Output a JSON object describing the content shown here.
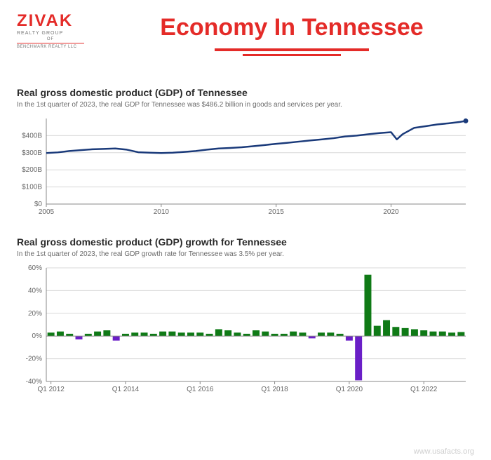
{
  "logo": {
    "brand": "ZIVAK",
    "sub": "REALTY GROUP",
    "of": "OF",
    "bottom": "BENCHMARK REALTY LLC"
  },
  "title": "Economy In Tennessee",
  "chart1": {
    "title": "Real gross domestic product (GDP) of Tennessee",
    "subtitle": "In the 1st quarter of 2023, the real GDP for Tennessee was $486.2 billion in goods and services per year.",
    "type": "line",
    "line_color": "#1a3a7a",
    "line_width": 2.5,
    "background_color": "#ffffff",
    "grid_color": "#d8d8d8",
    "axis_color": "#888888",
    "label_color": "#666666",
    "label_fontsize": 10,
    "x_start": 2005,
    "x_end": 2023.25,
    "x_ticks": [
      2005,
      2010,
      2015,
      2020
    ],
    "x_tick_labels": [
      "2005",
      "2010",
      "2015",
      "2020"
    ],
    "ylim": [
      0,
      500
    ],
    "y_ticks": [
      0,
      100,
      200,
      300,
      400
    ],
    "y_tick_labels": [
      "$0",
      "$100B",
      "$200B",
      "$300B",
      "$400B"
    ],
    "years": [
      2005,
      2005.5,
      2006,
      2006.5,
      2007,
      2007.5,
      2008,
      2008.5,
      2009,
      2009.5,
      2010,
      2010.5,
      2011,
      2011.5,
      2012,
      2012.5,
      2013,
      2013.5,
      2014,
      2014.5,
      2015,
      2015.5,
      2016,
      2016.5,
      2017,
      2017.5,
      2018,
      2018.5,
      2019,
      2019.5,
      2020,
      2020.25,
      2020.5,
      2021,
      2021.5,
      2022,
      2022.5,
      2023,
      2023.25
    ],
    "values": [
      298,
      302,
      310,
      315,
      320,
      322,
      325,
      318,
      303,
      300,
      298,
      300,
      305,
      310,
      318,
      325,
      328,
      332,
      338,
      345,
      352,
      358,
      365,
      372,
      378,
      385,
      395,
      400,
      408,
      415,
      420,
      378,
      408,
      445,
      455,
      465,
      472,
      480,
      486
    ]
  },
  "chart2": {
    "title": "Real gross domestic product (GDP) growth for Tennessee",
    "subtitle": "In the 1st quarter of 2023, the real GDP growth rate for Tennessee was 3.5% per year.",
    "type": "bar",
    "background_color": "#ffffff",
    "grid_color": "#d8d8d8",
    "axis_color": "#888888",
    "label_color": "#666666",
    "label_fontsize": 10,
    "positive_color": "#0f7a16",
    "negative_color": "#6a1fc7",
    "bar_width": 0.75,
    "ylim": [
      -40,
      60
    ],
    "y_ticks": [
      -40,
      -20,
      0,
      20,
      40,
      60
    ],
    "y_tick_labels": [
      "-40%",
      "-20%",
      "0%",
      "20%",
      "40%",
      "60%"
    ],
    "x_tick_positions": [
      0,
      8,
      16,
      24,
      32,
      40
    ],
    "x_tick_labels": [
      "Q1 2012",
      "Q1 2014",
      "Q1 2016",
      "Q1 2018",
      "Q1 2020",
      "Q1 2022"
    ],
    "values": [
      3,
      4,
      2,
      -3,
      2,
      4,
      5,
      -4,
      2,
      3,
      3,
      2,
      4,
      4,
      3,
      3,
      3,
      2,
      6,
      5,
      3,
      2,
      5,
      4,
      2,
      2,
      4,
      3,
      -2,
      3,
      3,
      2,
      -4,
      -39,
      54,
      9,
      14,
      8,
      7,
      6,
      5,
      4,
      4,
      3,
      3.5
    ],
    "n_bars": 45
  },
  "footer": "www.usafacts.org"
}
